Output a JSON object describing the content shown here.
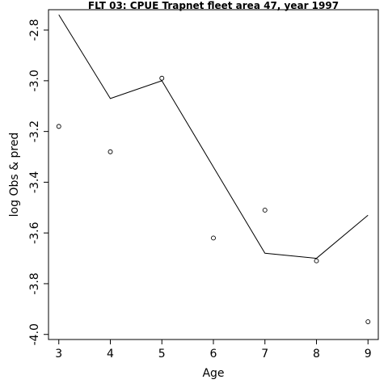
{
  "chart_data": {
    "type": "line",
    "title": "FLT 03: CPUE Trapnet fleet area 47, year 1997",
    "xlabel": "Age",
    "ylabel": "log Obs & pred",
    "x_ticks": [
      3,
      4,
      5,
      6,
      7,
      8,
      9
    ],
    "y_ticks": [
      -4.0,
      -3.8,
      -3.6,
      -3.4,
      -3.2,
      -3.0,
      -2.8
    ],
    "y_tick_labels": [
      "-4.0",
      "-3.8",
      "-3.6",
      "-3.4",
      "-3.2",
      "-3.0",
      "-2.8"
    ],
    "xlim": [
      2.8,
      9.2
    ],
    "ylim": [
      -4.02,
      -2.72
    ],
    "grid": false,
    "series": [
      {
        "role": "observed",
        "style": "points",
        "x": [
          3,
          4,
          5,
          6,
          7,
          8,
          9
        ],
        "y": [
          -3.18,
          -3.28,
          -2.99,
          -3.62,
          -3.51,
          -3.71,
          -3.95
        ]
      },
      {
        "role": "predicted",
        "style": "line",
        "x": [
          3,
          4,
          5,
          6,
          7,
          8,
          9
        ],
        "y": [
          -2.74,
          -3.07,
          -3.0,
          -3.34,
          -3.68,
          -3.7,
          -3.53
        ]
      }
    ]
  }
}
